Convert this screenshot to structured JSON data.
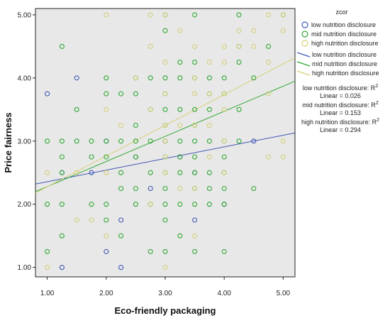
{
  "chart_data": {
    "type": "scatter",
    "xlabel": "Eco-friendly packaging",
    "ylabel": "Price fairness",
    "xlim": [
      0.8,
      5.2
    ],
    "ylim": [
      0.85,
      5.1
    ],
    "x_ticks": [
      "1.00",
      "2.00",
      "3.00",
      "4.00",
      "5.00"
    ],
    "y_ticks": [
      "1.00",
      "2.00",
      "3.00",
      "4.00",
      "5.00"
    ],
    "grid": false,
    "background": "#e8e8e8",
    "legend": {
      "title": "zcor",
      "placement": "right",
      "point_entries": [
        "low nutrition disclosure",
        "mid nutrition disclosure",
        "high nutrition disclosure"
      ],
      "line_entries": [
        "low nutrition disclosure",
        "mid nutrition disclosure",
        "high nutrition disclosure"
      ]
    },
    "annotations": [
      {
        "line1": "low nutrition disclosure: R",
        "sup": "2",
        "line2": "Linear = 0.026"
      },
      {
        "line1": "mid nutrition disclosure: R",
        "sup": "2",
        "line2": "Linear = 0.153"
      },
      {
        "line1": "high nutrition disclosure: R",
        "sup": "2",
        "line2": "Linear = 0.294"
      }
    ],
    "series": [
      {
        "name": "low nutrition disclosure",
        "color": "#3f57b5",
        "points": [
          [
            1.0,
            3.75
          ],
          [
            1.25,
            2.5
          ],
          [
            1.25,
            1.0
          ],
          [
            1.5,
            4.0
          ],
          [
            1.75,
            2.5
          ],
          [
            2.0,
            3.0
          ],
          [
            2.0,
            1.25
          ],
          [
            2.25,
            1.75
          ],
          [
            2.25,
            1.0
          ],
          [
            2.5,
            2.75
          ],
          [
            2.75,
            2.25
          ],
          [
            3.0,
            3.0
          ],
          [
            3.25,
            2.75
          ],
          [
            3.5,
            2.5
          ],
          [
            3.5,
            1.75
          ],
          [
            4.0,
            2.0
          ],
          [
            4.5,
            3.0
          ]
        ],
        "fit_line": {
          "x": [
            0.8,
            5.2
          ],
          "y": [
            2.32,
            3.13
          ]
        }
      },
      {
        "name": "mid nutrition disclosure",
        "color": "#2fa832",
        "points": [
          [
            1.0,
            3.0
          ],
          [
            1.0,
            2.0
          ],
          [
            1.0,
            1.25
          ],
          [
            1.25,
            4.5
          ],
          [
            1.25,
            3.0
          ],
          [
            1.25,
            2.75
          ],
          [
            1.25,
            2.5
          ],
          [
            1.25,
            2.0
          ],
          [
            1.25,
            1.5
          ],
          [
            1.5,
            3.5
          ],
          [
            1.5,
            3.0
          ],
          [
            1.75,
            3.0
          ],
          [
            1.75,
            2.75
          ],
          [
            1.75,
            2.0
          ],
          [
            2.0,
            4.0
          ],
          [
            2.0,
            3.75
          ],
          [
            2.0,
            3.0
          ],
          [
            2.0,
            2.75
          ],
          [
            2.0,
            2.0
          ],
          [
            2.0,
            1.75
          ],
          [
            2.25,
            3.75
          ],
          [
            2.25,
            3.0
          ],
          [
            2.25,
            2.5
          ],
          [
            2.25,
            2.25
          ],
          [
            2.25,
            1.5
          ],
          [
            2.5,
            4.0
          ],
          [
            2.5,
            3.75
          ],
          [
            2.5,
            3.25
          ],
          [
            2.5,
            3.0
          ],
          [
            2.5,
            2.75
          ],
          [
            2.5,
            2.25
          ],
          [
            2.5,
            2.0
          ],
          [
            2.75,
            4.0
          ],
          [
            2.75,
            3.5
          ],
          [
            2.75,
            3.0
          ],
          [
            2.75,
            2.5
          ],
          [
            2.75,
            2.0
          ],
          [
            2.75,
            1.25
          ],
          [
            3.0,
            5.0
          ],
          [
            3.0,
            4.75
          ],
          [
            3.0,
            4.0
          ],
          [
            3.0,
            3.75
          ],
          [
            3.0,
            3.5
          ],
          [
            3.0,
            3.25
          ],
          [
            3.0,
            3.0
          ],
          [
            3.0,
            2.75
          ],
          [
            3.0,
            2.5
          ],
          [
            3.0,
            2.25
          ],
          [
            3.0,
            2.0
          ],
          [
            3.0,
            1.75
          ],
          [
            3.0,
            1.25
          ],
          [
            3.25,
            4.25
          ],
          [
            3.25,
            4.0
          ],
          [
            3.25,
            3.5
          ],
          [
            3.25,
            3.0
          ],
          [
            3.25,
            2.75
          ],
          [
            3.25,
            2.5
          ],
          [
            3.25,
            2.0
          ],
          [
            3.25,
            1.5
          ],
          [
            3.5,
            5.0
          ],
          [
            3.5,
            4.25
          ],
          [
            3.5,
            4.0
          ],
          [
            3.5,
            3.5
          ],
          [
            3.5,
            3.25
          ],
          [
            3.5,
            3.0
          ],
          [
            3.5,
            2.75
          ],
          [
            3.5,
            2.5
          ],
          [
            3.5,
            2.25
          ],
          [
            3.5,
            2.0
          ],
          [
            3.5,
            1.25
          ],
          [
            3.75,
            4.0
          ],
          [
            3.75,
            3.75
          ],
          [
            3.75,
            3.5
          ],
          [
            3.75,
            3.0
          ],
          [
            3.75,
            2.5
          ],
          [
            3.75,
            2.25
          ],
          [
            3.75,
            2.0
          ],
          [
            4.0,
            4.0
          ],
          [
            4.0,
            3.75
          ],
          [
            4.0,
            3.0
          ],
          [
            4.0,
            2.75
          ],
          [
            4.0,
            2.5
          ],
          [
            4.0,
            2.25
          ],
          [
            4.0,
            2.0
          ],
          [
            4.0,
            1.25
          ],
          [
            4.25,
            5.0
          ],
          [
            4.25,
            4.5
          ],
          [
            4.25,
            4.25
          ],
          [
            4.25,
            3.5
          ],
          [
            4.25,
            3.0
          ],
          [
            4.5,
            4.0
          ],
          [
            4.5,
            2.25
          ],
          [
            4.75,
            4.5
          ],
          [
            5.0,
            5.0
          ]
        ],
        "fit_line": {
          "x": [
            0.8,
            5.2
          ],
          "y": [
            2.2,
            3.95
          ]
        }
      },
      {
        "name": "high nutrition disclosure",
        "color": "#d6d07a",
        "points": [
          [
            1.0,
            2.5
          ],
          [
            1.0,
            1.0
          ],
          [
            1.5,
            2.5
          ],
          [
            1.5,
            1.75
          ],
          [
            1.75,
            1.75
          ],
          [
            2.0,
            5.0
          ],
          [
            2.0,
            3.5
          ],
          [
            2.0,
            2.5
          ],
          [
            2.0,
            1.5
          ],
          [
            2.25,
            3.25
          ],
          [
            2.5,
            4.0
          ],
          [
            2.75,
            5.0
          ],
          [
            2.75,
            4.5
          ],
          [
            2.75,
            3.5
          ],
          [
            2.75,
            2.0
          ],
          [
            3.0,
            5.0
          ],
          [
            3.0,
            4.25
          ],
          [
            3.0,
            3.75
          ],
          [
            3.0,
            3.25
          ],
          [
            3.0,
            3.0
          ],
          [
            3.0,
            2.75
          ],
          [
            3.0,
            2.5
          ],
          [
            3.0,
            1.0
          ],
          [
            3.25,
            4.75
          ],
          [
            3.25,
            3.25
          ],
          [
            3.25,
            2.25
          ],
          [
            3.5,
            4.5
          ],
          [
            3.5,
            4.0
          ],
          [
            3.5,
            3.75
          ],
          [
            3.5,
            3.25
          ],
          [
            3.5,
            2.25
          ],
          [
            3.5,
            1.5
          ],
          [
            3.75,
            4.25
          ],
          [
            3.75,
            3.75
          ],
          [
            3.75,
            3.25
          ],
          [
            3.75,
            2.75
          ],
          [
            4.0,
            4.5
          ],
          [
            4.0,
            4.25
          ],
          [
            4.0,
            3.75
          ],
          [
            4.0,
            3.5
          ],
          [
            4.0,
            3.0
          ],
          [
            4.0,
            2.5
          ],
          [
            4.25,
            4.75
          ],
          [
            4.25,
            4.5
          ],
          [
            4.5,
            4.75
          ],
          [
            4.5,
            4.5
          ],
          [
            4.75,
            5.0
          ],
          [
            4.75,
            4.25
          ],
          [
            4.75,
            3.75
          ],
          [
            4.75,
            2.75
          ],
          [
            5.0,
            5.0
          ],
          [
            5.0,
            4.75
          ],
          [
            5.0,
            3.0
          ],
          [
            5.0,
            2.75
          ]
        ],
        "fit_line": {
          "x": [
            0.8,
            5.2
          ],
          "y": [
            2.18,
            4.32
          ]
        }
      }
    ]
  }
}
